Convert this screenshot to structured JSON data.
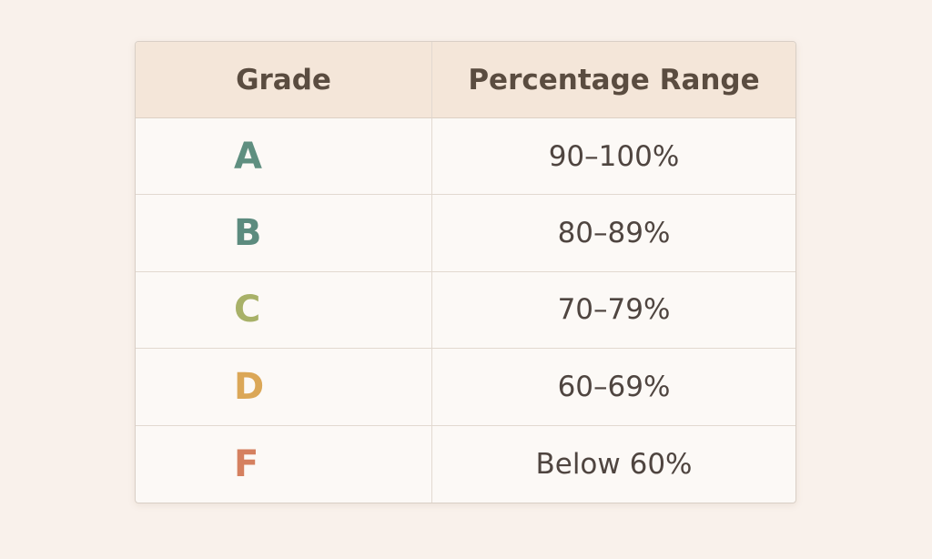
{
  "table": {
    "headers": {
      "grade": "Grade",
      "range": "Percentage Range"
    },
    "rows": [
      {
        "grade": "A",
        "range": "90–100%",
        "color": "#5f8f80"
      },
      {
        "grade": "B",
        "range": "80–89%",
        "color": "#5c8b7e"
      },
      {
        "grade": "C",
        "range": "70–79%",
        "color": "#a8b168"
      },
      {
        "grade": "D",
        "range": "60–69%",
        "color": "#dba757"
      },
      {
        "grade": "F",
        "range": "Below 60%",
        "color": "#d5805f"
      }
    ]
  }
}
